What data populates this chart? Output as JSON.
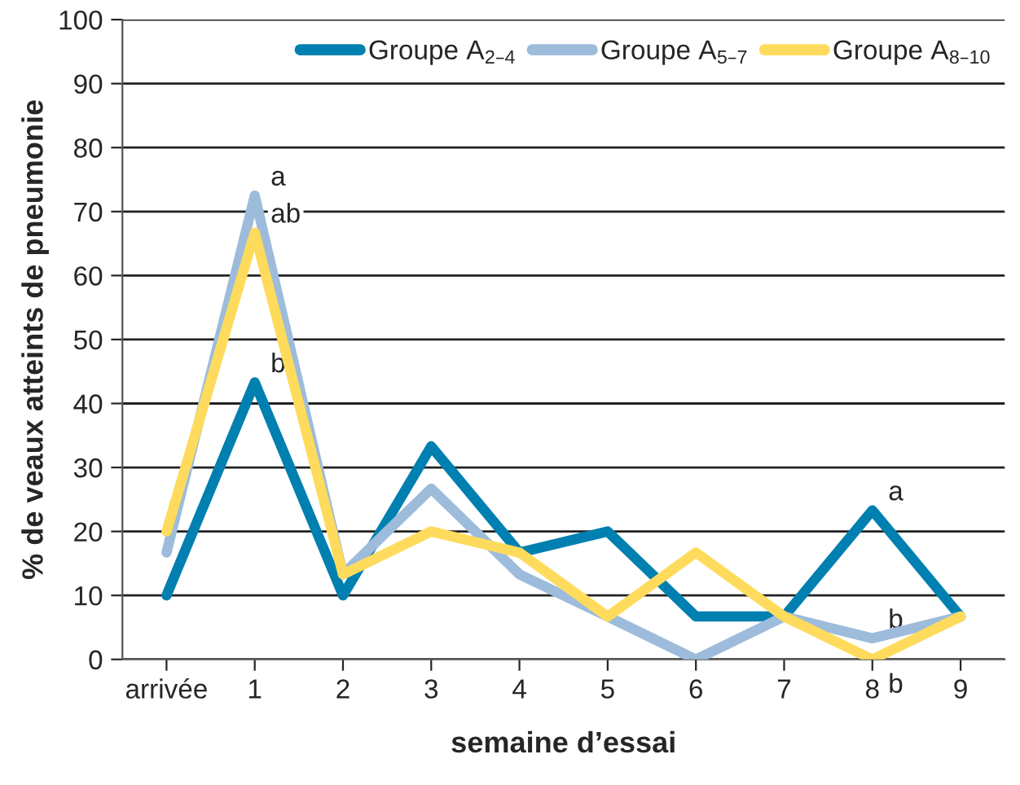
{
  "chart_data": {
    "type": "line",
    "xlabel": "semaine d’essai",
    "ylabel": "% de veaux atteints de pneumonie",
    "categories": [
      "arrivée",
      "1",
      "2",
      "3",
      "4",
      "5",
      "6",
      "7",
      "8",
      "9"
    ],
    "series": [
      {
        "name": "Groupe A$_{2–4}$",
        "color": "#0080b0",
        "values": [
          10,
          43.3,
          10,
          33.3,
          16.7,
          20,
          6.7,
          6.7,
          23.3,
          6.7
        ]
      },
      {
        "name": "Groupe A$_{5–7}$",
        "color": "#9dbcdc",
        "values": [
          16.7,
          72.5,
          13.3,
          26.7,
          13.3,
          6.7,
          0,
          6.7,
          3.3,
          6.7
        ]
      },
      {
        "name": "Groupe A$_{8–10}$",
        "color": "#fedb5c",
        "values": [
          20,
          66.7,
          13.3,
          20,
          16.7,
          6.7,
          16.7,
          6.7,
          0,
          6.7
        ]
      }
    ],
    "annotations": [
      {
        "text": "a",
        "x": "1",
        "y": 72.5
      },
      {
        "text": "ab",
        "x": "1",
        "y": 66.7
      },
      {
        "text": "b",
        "x": "1",
        "y": 43.3
      },
      {
        "text": "a",
        "x": "8",
        "y": 23.3
      },
      {
        "text": "b",
        "x": "8",
        "y": 3.3
      },
      {
        "text": "b",
        "x": "8",
        "y": 0
      }
    ],
    "ylim": [
      0,
      100
    ],
    "yticks": [
      0,
      10,
      20,
      30,
      40,
      50,
      60,
      70,
      80,
      90,
      100
    ],
    "grid": "y",
    "legend": "top right",
    "marker": "none",
    "line_style": "solid"
  }
}
